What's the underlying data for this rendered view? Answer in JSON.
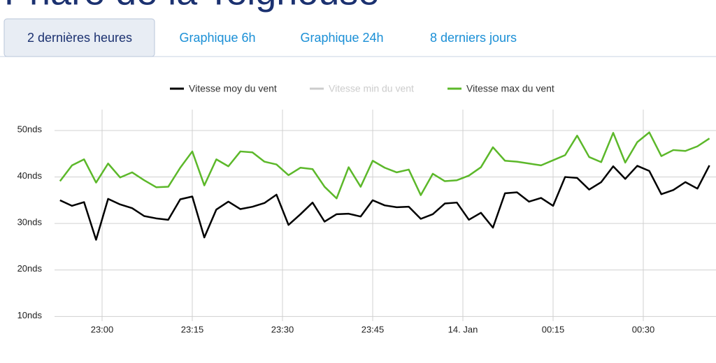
{
  "header": {
    "title": "Phare de la Teignouse"
  },
  "tabs": [
    "2 dernières heures",
    "Graphique 6h",
    "Graphique 24h",
    "8 derniers jours"
  ],
  "chart_data": {
    "type": "line",
    "x": [
      "22:53",
      "22:55",
      "22:57",
      "22:59",
      "23:01",
      "23:03",
      "23:05",
      "23:07",
      "23:09",
      "23:11",
      "23:13",
      "23:15",
      "23:17",
      "23:19",
      "23:21",
      "23:23",
      "23:25",
      "23:27",
      "23:29",
      "23:31",
      "23:33",
      "23:35",
      "23:37",
      "23:39",
      "23:41",
      "23:43",
      "23:45",
      "23:47",
      "23:49",
      "23:51",
      "23:53",
      "23:55",
      "23:57",
      "23:59",
      "00:01",
      "00:03",
      "00:05",
      "00:07",
      "00:09",
      "00:11",
      "00:13",
      "00:15",
      "00:17",
      "00:19",
      "00:21",
      "00:23",
      "00:25",
      "00:27",
      "00:29",
      "00:31",
      "00:33",
      "00:35",
      "00:37",
      "00:39",
      "00:41"
    ],
    "series": [
      {
        "name": "Vitesse moy du vent",
        "color": "#000000",
        "values": [
          35,
          33.8,
          34.6,
          26.5,
          35.3,
          34.1,
          33.3,
          31.6,
          31.1,
          30.8,
          35.2,
          35.8,
          27,
          33,
          34.7,
          33.1,
          33.6,
          34.4,
          36.2,
          29.7,
          32,
          34.5,
          30.4,
          32,
          32.1,
          31.5,
          35,
          33.9,
          33.5,
          33.6,
          31,
          32,
          34.3,
          34.5,
          30.8,
          32.3,
          29.1,
          36.5,
          36.7,
          34.7,
          35.5,
          33.8,
          40,
          39.8,
          37.3,
          38.9,
          42.3,
          39.6,
          42.4,
          41.3,
          36.3,
          37.2,
          38.9,
          37.5,
          42.5
        ]
      },
      {
        "name": "Vitesse min du vent",
        "color": "#cccccc",
        "hidden": true
      },
      {
        "name": "Vitesse max du vent",
        "color": "#5cb82a",
        "values": [
          39.1,
          42.5,
          43.8,
          38.8,
          42.9,
          39.9,
          41,
          39.3,
          37.8,
          37.9,
          42,
          45.5,
          38.2,
          43.8,
          42.3,
          45.5,
          45.3,
          43.3,
          42.7,
          40.4,
          42,
          41.7,
          37.9,
          35.4,
          42.1,
          37.9,
          43.5,
          42,
          41,
          41.6,
          36.1,
          40.7,
          39.1,
          39.3,
          40.3,
          42.1,
          46.4,
          43.5,
          43.3,
          42.9,
          42.5,
          43.6,
          44.7,
          48.9,
          44.3,
          43.2,
          49.5,
          43.1,
          47.5,
          49.6,
          44.5,
          45.8,
          45.6,
          46.6,
          48.3
        ]
      }
    ],
    "ylim": [
      9,
      54.5
    ],
    "yticks": [
      {
        "value": 10,
        "label": "10nds"
      },
      {
        "value": 20,
        "label": "20nds"
      },
      {
        "value": 30,
        "label": "30nds"
      },
      {
        "value": 40,
        "label": "40nds"
      },
      {
        "value": 50,
        "label": "50nds"
      }
    ],
    "xticks": [
      "23:00",
      "23:15",
      "23:30",
      "23:45",
      {
        "value": "00:00",
        "label": "14. Jan"
      },
      "00:15",
      "00:30"
    ],
    "grid": true
  }
}
